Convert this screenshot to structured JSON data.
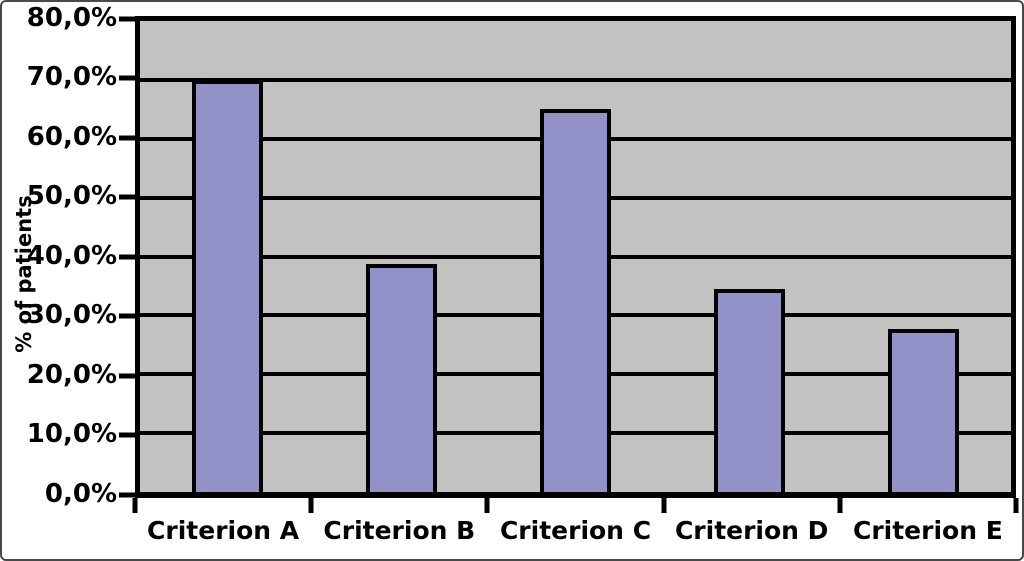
{
  "chart_data": {
    "type": "bar",
    "title": "",
    "xlabel": "",
    "ylabel": "% of patients",
    "categories": [
      "Criterion A",
      "Criterion B",
      "Criterion C",
      "Criterion D",
      "Criterion E"
    ],
    "values": [
      70.0,
      38.7,
      65.0,
      34.5,
      27.7
    ],
    "ylim": [
      0,
      80
    ],
    "ytick_step": 10,
    "ytick_labels_top_to_bottom": [
      "80,0%",
      "70,0%",
      "60,0%",
      "50,0%",
      "40,0%",
      "30,0%",
      "20,0%",
      "10,0%",
      "0,0%"
    ],
    "decimal_separator": ",",
    "grid": true,
    "legend": false,
    "colors": {
      "bar_fill": "#9292c8",
      "bar_border": "#000000",
      "plot_background": "#c2c2c0",
      "gridline": "#000000",
      "axis": "#000000",
      "text": "#000000",
      "page_background": "#ffffff",
      "frame_border": "#4a4a4a"
    }
  }
}
